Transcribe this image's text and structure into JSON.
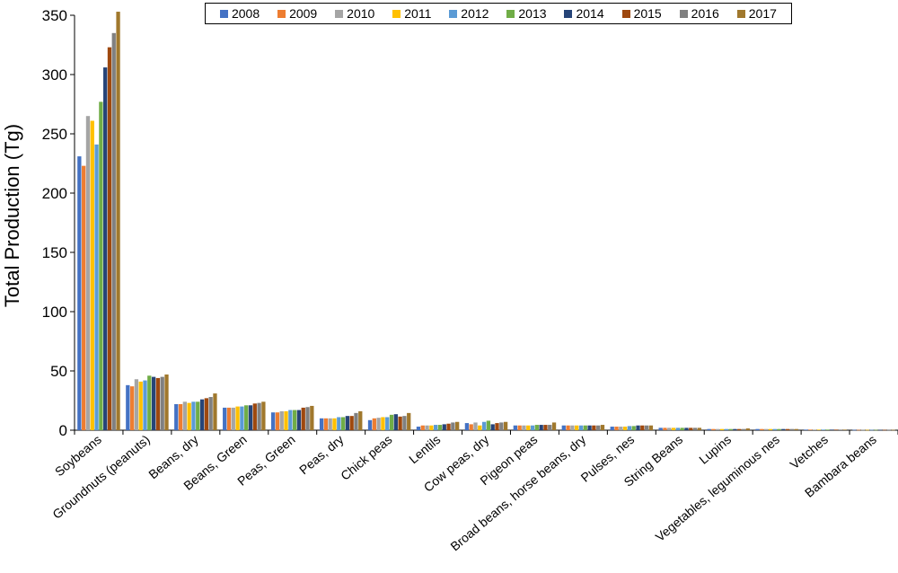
{
  "chart_data": {
    "type": "bar",
    "ylabel": "Total Production (Tg)",
    "ylim": [
      0,
      350
    ],
    "yticks": [
      0,
      50,
      100,
      150,
      200,
      250,
      300,
      350
    ],
    "grid": false,
    "legend_position": "top",
    "categories": [
      "Soybeans",
      "Groundnuts (peanuts)",
      "Beans, dry",
      "Beans, Green",
      "Peas, Green",
      "Peas, dry",
      "Chick peas",
      "Lentils",
      "Cow peas, dry",
      "Pigeon peas",
      "Broad beans, horse beans, dry",
      "Pulses, nes",
      "String Beans",
      "Lupins",
      "Vegetables, leguminous nes",
      "Vetches",
      "Bambara beans"
    ],
    "series": [
      {
        "name": "2008",
        "color": "#4472c4",
        "values": [
          231,
          38,
          22,
          19,
          15,
          10,
          8.5,
          3,
          6,
          4,
          4,
          3,
          2,
          1,
          1,
          0.5,
          0.3
        ]
      },
      {
        "name": "2009",
        "color": "#ed7d31",
        "values": [
          223,
          37,
          22,
          19,
          15,
          10,
          10,
          4,
          5,
          4,
          4,
          3,
          2,
          1,
          1,
          0.5,
          0.3
        ]
      },
      {
        "name": "2010",
        "color": "#a5a5a5",
        "values": [
          265,
          43,
          24,
          19,
          16,
          10,
          10.5,
          4,
          6.5,
          4,
          4,
          3,
          2,
          1,
          1,
          0.5,
          0.3
        ]
      },
      {
        "name": "2011",
        "color": "#ffc000",
        "values": [
          261,
          41,
          23,
          20,
          16,
          10,
          11,
          4,
          4,
          4,
          4,
          3,
          2,
          1,
          1,
          0.5,
          0.3
        ]
      },
      {
        "name": "2012",
        "color": "#5b9bd5",
        "values": [
          241,
          42,
          24,
          20,
          17,
          11,
          11,
          4.5,
          7,
          4,
          4,
          3.5,
          2,
          1,
          1,
          0.5,
          0.3
        ]
      },
      {
        "name": "2013",
        "color": "#70ad47",
        "values": [
          277,
          46,
          24,
          21,
          17,
          11,
          13,
          4.5,
          8,
          4.5,
          4,
          3.5,
          2,
          1,
          1,
          0.5,
          0.3
        ]
      },
      {
        "name": "2014",
        "color": "#264478",
        "values": [
          306,
          45,
          26,
          21,
          17,
          12,
          13.5,
          5,
          5,
          4.5,
          4,
          4,
          2,
          1,
          1,
          0.5,
          0.3
        ]
      },
      {
        "name": "2015",
        "color": "#9e480e",
        "values": [
          323,
          44,
          27,
          22.5,
          19,
          12,
          11.5,
          5.5,
          6,
          4.5,
          4,
          4,
          2,
          1,
          1,
          0.5,
          0.3
        ]
      },
      {
        "name": "2016",
        "color": "#808080",
        "values": [
          335,
          45,
          28,
          23,
          19.5,
          14.5,
          12,
          6.5,
          6.5,
          4.5,
          4,
          4,
          2,
          1,
          1,
          0.5,
          0.3
        ]
      },
      {
        "name": "2017",
        "color": "#a0782d",
        "values": [
          353,
          47,
          31,
          24,
          20.5,
          16,
          14.5,
          7,
          7,
          6.5,
          4.5,
          4,
          2,
          1.5,
          1,
          0.5,
          0.3
        ]
      }
    ]
  }
}
